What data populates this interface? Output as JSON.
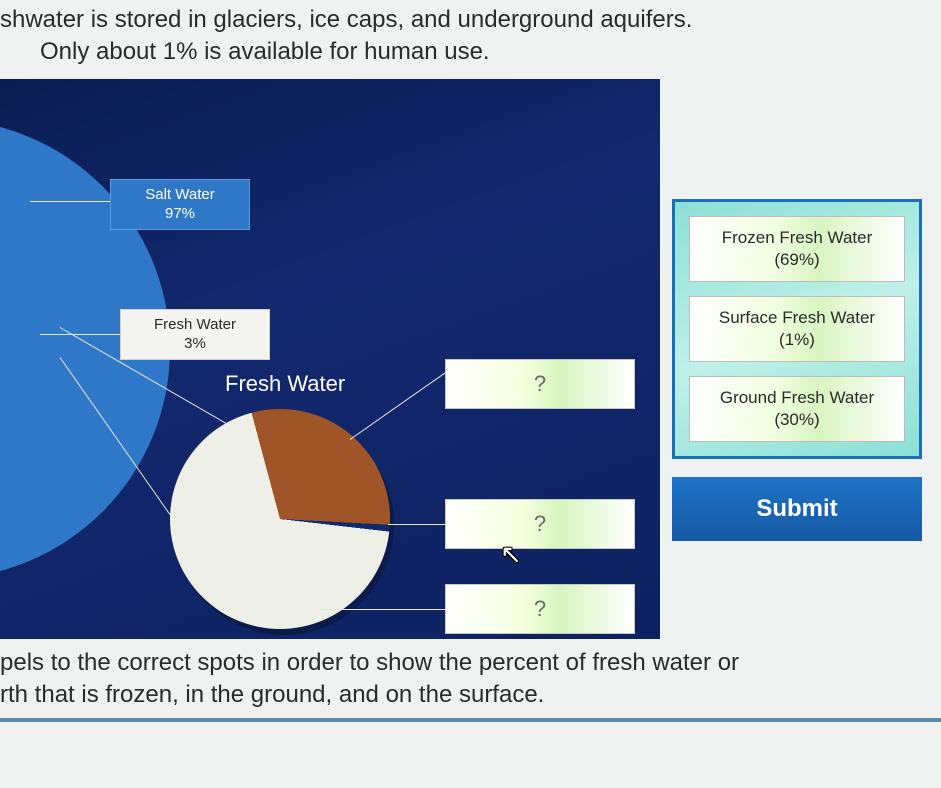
{
  "intro": {
    "line1": "shwater is stored in glaciers, ice caps, and underground aquifers.",
    "line2": "Only about 1% is available for human use."
  },
  "outro": {
    "line1": "pels to the correct spots in order to show the percent of fresh water or",
    "line2": "rth that is frozen, in the ground, and on the surface."
  },
  "chart": {
    "big_pie": {
      "type": "pie",
      "slices": [
        {
          "label": "Salt Water",
          "percent": 97,
          "color": "#2f77c7"
        },
        {
          "label": "Fresh Water",
          "percent": 3,
          "color": "#eef0e8"
        }
      ],
      "salt_label_title": "Salt Water",
      "salt_label_pct": "97%",
      "salt_label_bg": "#2f77c7",
      "fresh_label_title": "Fresh Water",
      "fresh_label_pct": "3%",
      "fresh_label_bg": "#f4f4f0"
    },
    "small_pie": {
      "type": "pie",
      "title": "Fresh Water",
      "title_color": "#ffffff",
      "title_fontsize": 22,
      "slices": [
        {
          "name": "Frozen Fresh Water",
          "percent": 69,
          "color": "#eef0e8"
        },
        {
          "name": "Ground Fresh Water",
          "percent": 30,
          "color": "#a05528"
        },
        {
          "name": "Surface Fresh Water",
          "percent": 1,
          "color": "#0f2a6a"
        }
      ]
    },
    "panel_bg": "#0f2260",
    "leader_color": "#e8e8e0"
  },
  "dropzones": {
    "placeholder": "?",
    "count": 3
  },
  "answer_bank": {
    "border_color": "#1a70b0",
    "bg_gradient": [
      "#8be0d6",
      "#bff0e8"
    ],
    "chips": [
      {
        "label": "Frozen Fresh Water",
        "pct": "(69%)"
      },
      {
        "label": "Surface Fresh Water",
        "pct": "(1%)"
      },
      {
        "label": "Ground Fresh Water",
        "pct": "(30%)"
      }
    ]
  },
  "submit": {
    "label": "Submit",
    "bg": "#1e74c7",
    "color": "#ffffff"
  },
  "colors": {
    "salt": "#2f77c7",
    "fresh_wedge": "#eef0e8",
    "frozen": "#eef0e8",
    "ground": "#a05528",
    "surface": "#0f2a6a"
  }
}
